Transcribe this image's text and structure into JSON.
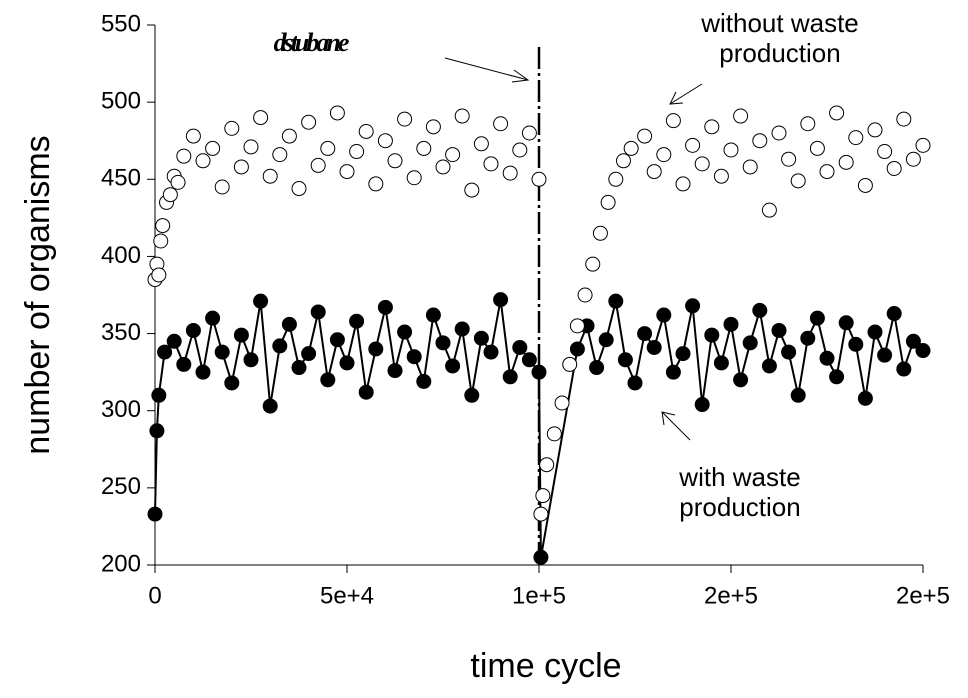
{
  "chart_data": {
    "type": "scatter",
    "x_label": "time cycle",
    "y_label": "number of organisms",
    "xlim": [
      0,
      200000
    ],
    "ylim": [
      200,
      550
    ],
    "xticks": [
      0,
      {
        "value": 50000,
        "label": "5e+4"
      },
      {
        "value": 100000,
        "label": "1e+5"
      },
      {
        "value": 150000,
        "label": "2e+5"
      },
      {
        "value": 200000,
        "label": "2e+5"
      }
    ],
    "yticks": [
      200,
      250,
      300,
      350,
      400,
      450,
      500,
      550
    ],
    "disturbance": {
      "label": "dstubane",
      "x": 100000
    },
    "series": [
      {
        "name": "without waste production",
        "color": "#ffffff",
        "stroke": "#000000",
        "x": [
          0,
          500,
          1000,
          1500,
          2000,
          3000,
          4000,
          5000,
          6000,
          7500,
          10000,
          12500,
          15000,
          17500,
          20000,
          22500,
          25000,
          27500,
          30000,
          32500,
          35000,
          37500,
          40000,
          42500,
          45000,
          47500,
          50000,
          52500,
          55000,
          57500,
          60000,
          62500,
          65000,
          67500,
          70000,
          72500,
          75000,
          77500,
          80000,
          82500,
          85000,
          87500,
          90000,
          92500,
          95000,
          97500,
          100000,
          100500,
          101000,
          102000,
          104000,
          106000,
          108000,
          110000,
          112000,
          114000,
          116000,
          118000,
          120000,
          122000,
          124000,
          127500,
          130000,
          132500,
          135000,
          137500,
          140000,
          142500,
          145000,
          147500,
          150000,
          152500,
          155000,
          157500,
          160000,
          162500,
          165000,
          167500,
          170000,
          172500,
          175000,
          177500,
          180000,
          182500,
          185000,
          187500,
          190000,
          192500,
          195000,
          197500,
          200000
        ],
        "values": [
          385,
          395,
          388,
          410,
          420,
          435,
          440,
          452,
          448,
          465,
          478,
          462,
          470,
          445,
          483,
          458,
          471,
          490,
          452,
          466,
          478,
          444,
          487,
          459,
          470,
          493,
          455,
          468,
          481,
          447,
          475,
          462,
          489,
          451,
          470,
          484,
          458,
          466,
          491,
          443,
          473,
          460,
          486,
          454,
          469,
          480,
          450,
          233,
          245,
          265,
          285,
          305,
          330,
          355,
          375,
          395,
          415,
          435,
          450,
          462,
          470,
          478,
          455,
          466,
          488,
          447,
          472,
          460,
          484,
          452,
          469,
          491,
          458,
          475,
          430,
          480,
          463,
          449,
          486,
          470,
          455,
          493,
          461,
          477,
          446,
          482,
          468,
          457,
          489,
          463,
          472
        ]
      },
      {
        "name": "with waste production",
        "color": "#000000",
        "stroke": "#000000",
        "line": true,
        "x": [
          0,
          500,
          1000,
          2500,
          5000,
          7500,
          10000,
          12500,
          15000,
          17500,
          20000,
          22500,
          25000,
          27500,
          30000,
          32500,
          35000,
          37500,
          40000,
          42500,
          45000,
          47500,
          50000,
          52500,
          55000,
          57500,
          60000,
          62500,
          65000,
          67500,
          70000,
          72500,
          75000,
          77500,
          80000,
          82500,
          85000,
          87500,
          90000,
          92500,
          95000,
          97500,
          100000,
          100500,
          110000,
          112500,
          115000,
          117500,
          120000,
          122500,
          125000,
          127500,
          130000,
          132500,
          135000,
          137500,
          140000,
          142500,
          145000,
          147500,
          150000,
          152500,
          155000,
          157500,
          160000,
          162500,
          165000,
          167500,
          170000,
          172500,
          175000,
          177500,
          180000,
          182500,
          185000,
          187500,
          190000,
          192500,
          195000,
          197500,
          200000
        ],
        "values": [
          233,
          287,
          310,
          338,
          345,
          330,
          352,
          325,
          360,
          338,
          318,
          349,
          333,
          371,
          303,
          342,
          356,
          328,
          337,
          364,
          320,
          346,
          331,
          358,
          312,
          340,
          367,
          326,
          351,
          335,
          319,
          362,
          344,
          329,
          353,
          310,
          347,
          338,
          372,
          322,
          341,
          333,
          325,
          205,
          340,
          355,
          328,
          346,
          371,
          333,
          318,
          350,
          341,
          362,
          325,
          337,
          368,
          304,
          349,
          331,
          356,
          320,
          344,
          365,
          329,
          352,
          338,
          310,
          347,
          360,
          334,
          322,
          357,
          343,
          308,
          351,
          336,
          363,
          327,
          345,
          339
        ]
      }
    ]
  }
}
